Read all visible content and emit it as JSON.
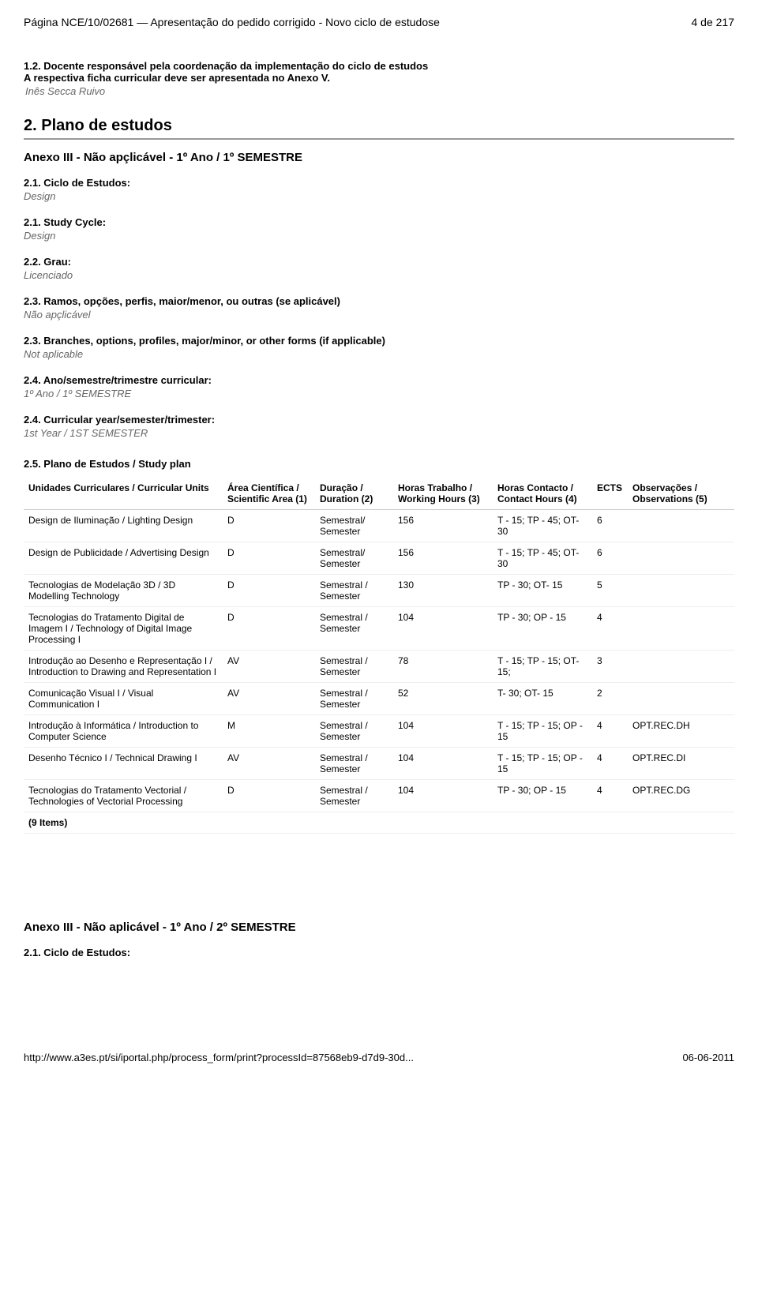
{
  "header": {
    "left": "Página NCE/10/02681 — Apresentação do pedido corrigido - Novo ciclo de estudose",
    "right": "4 de 217"
  },
  "section_1_2": {
    "label": "1.2. Docente responsável pela coordenação da implementação do ciclo de estudos",
    "label_line2": "A respectiva ficha curricular deve ser apresentada no Anexo V.",
    "value": "Inês Secca Ruivo"
  },
  "main_heading": "2. Plano de estudos",
  "anexo_heading": "Anexo III - Não apçlicável - 1º Ano / 1º SEMESTRE",
  "fields": [
    {
      "label": "2.1. Ciclo de Estudos:",
      "value": "Design"
    },
    {
      "label": "2.1. Study Cycle:",
      "value": "Design"
    },
    {
      "label": "2.2. Grau:",
      "value": "Licenciado"
    },
    {
      "label": "2.3. Ramos, opções, perfis, maior/menor, ou outras (se aplicável)",
      "value": "Não apçlicável"
    },
    {
      "label": "2.3. Branches, options, profiles, major/minor, or other forms (if applicable)",
      "value": "Not aplicable"
    },
    {
      "label": "2.4. Ano/semestre/trimestre curricular:",
      "value": "1º Ano / 1º SEMESTRE"
    },
    {
      "label": "2.4. Curricular year/semester/trimester:",
      "value": "1st Year / 1ST SEMESTER"
    }
  ],
  "plan_heading": "2.5. Plano de Estudos / Study plan",
  "table": {
    "columns": [
      "Unidades Curriculares / Curricular Units",
      "Área Científica / Scientific Area (1)",
      "Duração / Duration (2)",
      "Horas Trabalho / Working Hours (3)",
      "Horas Contacto / Contact Hours (4)",
      "ECTS",
      "Observações / Observations (5)"
    ],
    "rows": [
      {
        "unit": "Design de Iluminação / Lighting Design",
        "area": "D",
        "dur": "Semestral/ Semester",
        "work": "156",
        "cont": "T - 15; TP - 45; OT- 30",
        "ects": "6",
        "obs": ""
      },
      {
        "unit": "Design de Publicidade / Advertising Design",
        "area": "D",
        "dur": "Semestral/ Semester",
        "work": "156",
        "cont": "T - 15; TP - 45; OT- 30",
        "ects": "6",
        "obs": ""
      },
      {
        "unit": "Tecnologias de Modelação 3D / 3D Modelling Technology",
        "area": "D",
        "dur": "Semestral / Semester",
        "work": "130",
        "cont": "TP - 30; OT- 15",
        "ects": "5",
        "obs": ""
      },
      {
        "unit": "Tecnologias do Tratamento Digital de Imagem I / Technology of Digital Image Processing I",
        "area": "D",
        "dur": "Semestral / Semester",
        "work": "104",
        "cont": "TP - 30; OP - 15",
        "ects": "4",
        "obs": ""
      },
      {
        "unit": "Introdução ao Desenho e Representação I / Introduction to Drawing and Representation I",
        "area": "AV",
        "dur": "Semestral / Semester",
        "work": "78",
        "cont": "T - 15; TP - 15; OT- 15;",
        "ects": "3",
        "obs": ""
      },
      {
        "unit": "Comunicação Visual I / Visual Communication I",
        "area": "AV",
        "dur": "Semestral / Semester",
        "work": "52",
        "cont": "T- 30; OT- 15",
        "ects": "2",
        "obs": ""
      },
      {
        "unit": "Introdução à Informática / Introduction to Computer Science",
        "area": "M",
        "dur": "Semestral / Semester",
        "work": "104",
        "cont": "T - 15; TP - 15; OP - 15",
        "ects": "4",
        "obs": "OPT.REC.DH"
      },
      {
        "unit": "Desenho Técnico I / Technical Drawing I",
        "area": "AV",
        "dur": "Semestral / Semester",
        "work": "104",
        "cont": "T - 15; TP - 15; OP - 15",
        "ects": "4",
        "obs": "OPT.REC.DI"
      },
      {
        "unit": "Tecnologias do Tratamento Vectorial / Technologies of Vectorial Processing",
        "area": "D",
        "dur": "Semestral / Semester",
        "work": "104",
        "cont": "TP - 30; OP - 15",
        "ects": "4",
        "obs": "OPT.REC.DG"
      }
    ],
    "items_count": "(9 Items)"
  },
  "anexo2_heading": "Anexo III - Não aplicável - 1º Ano / 2º SEMESTRE",
  "bottom_field": {
    "label": "2.1. Ciclo de Estudos:"
  },
  "footer": {
    "left": "http://www.a3es.pt/si/iportal.php/process_form/print?processId=87568eb9-d7d9-30d...",
    "right": "06-06-2011"
  }
}
